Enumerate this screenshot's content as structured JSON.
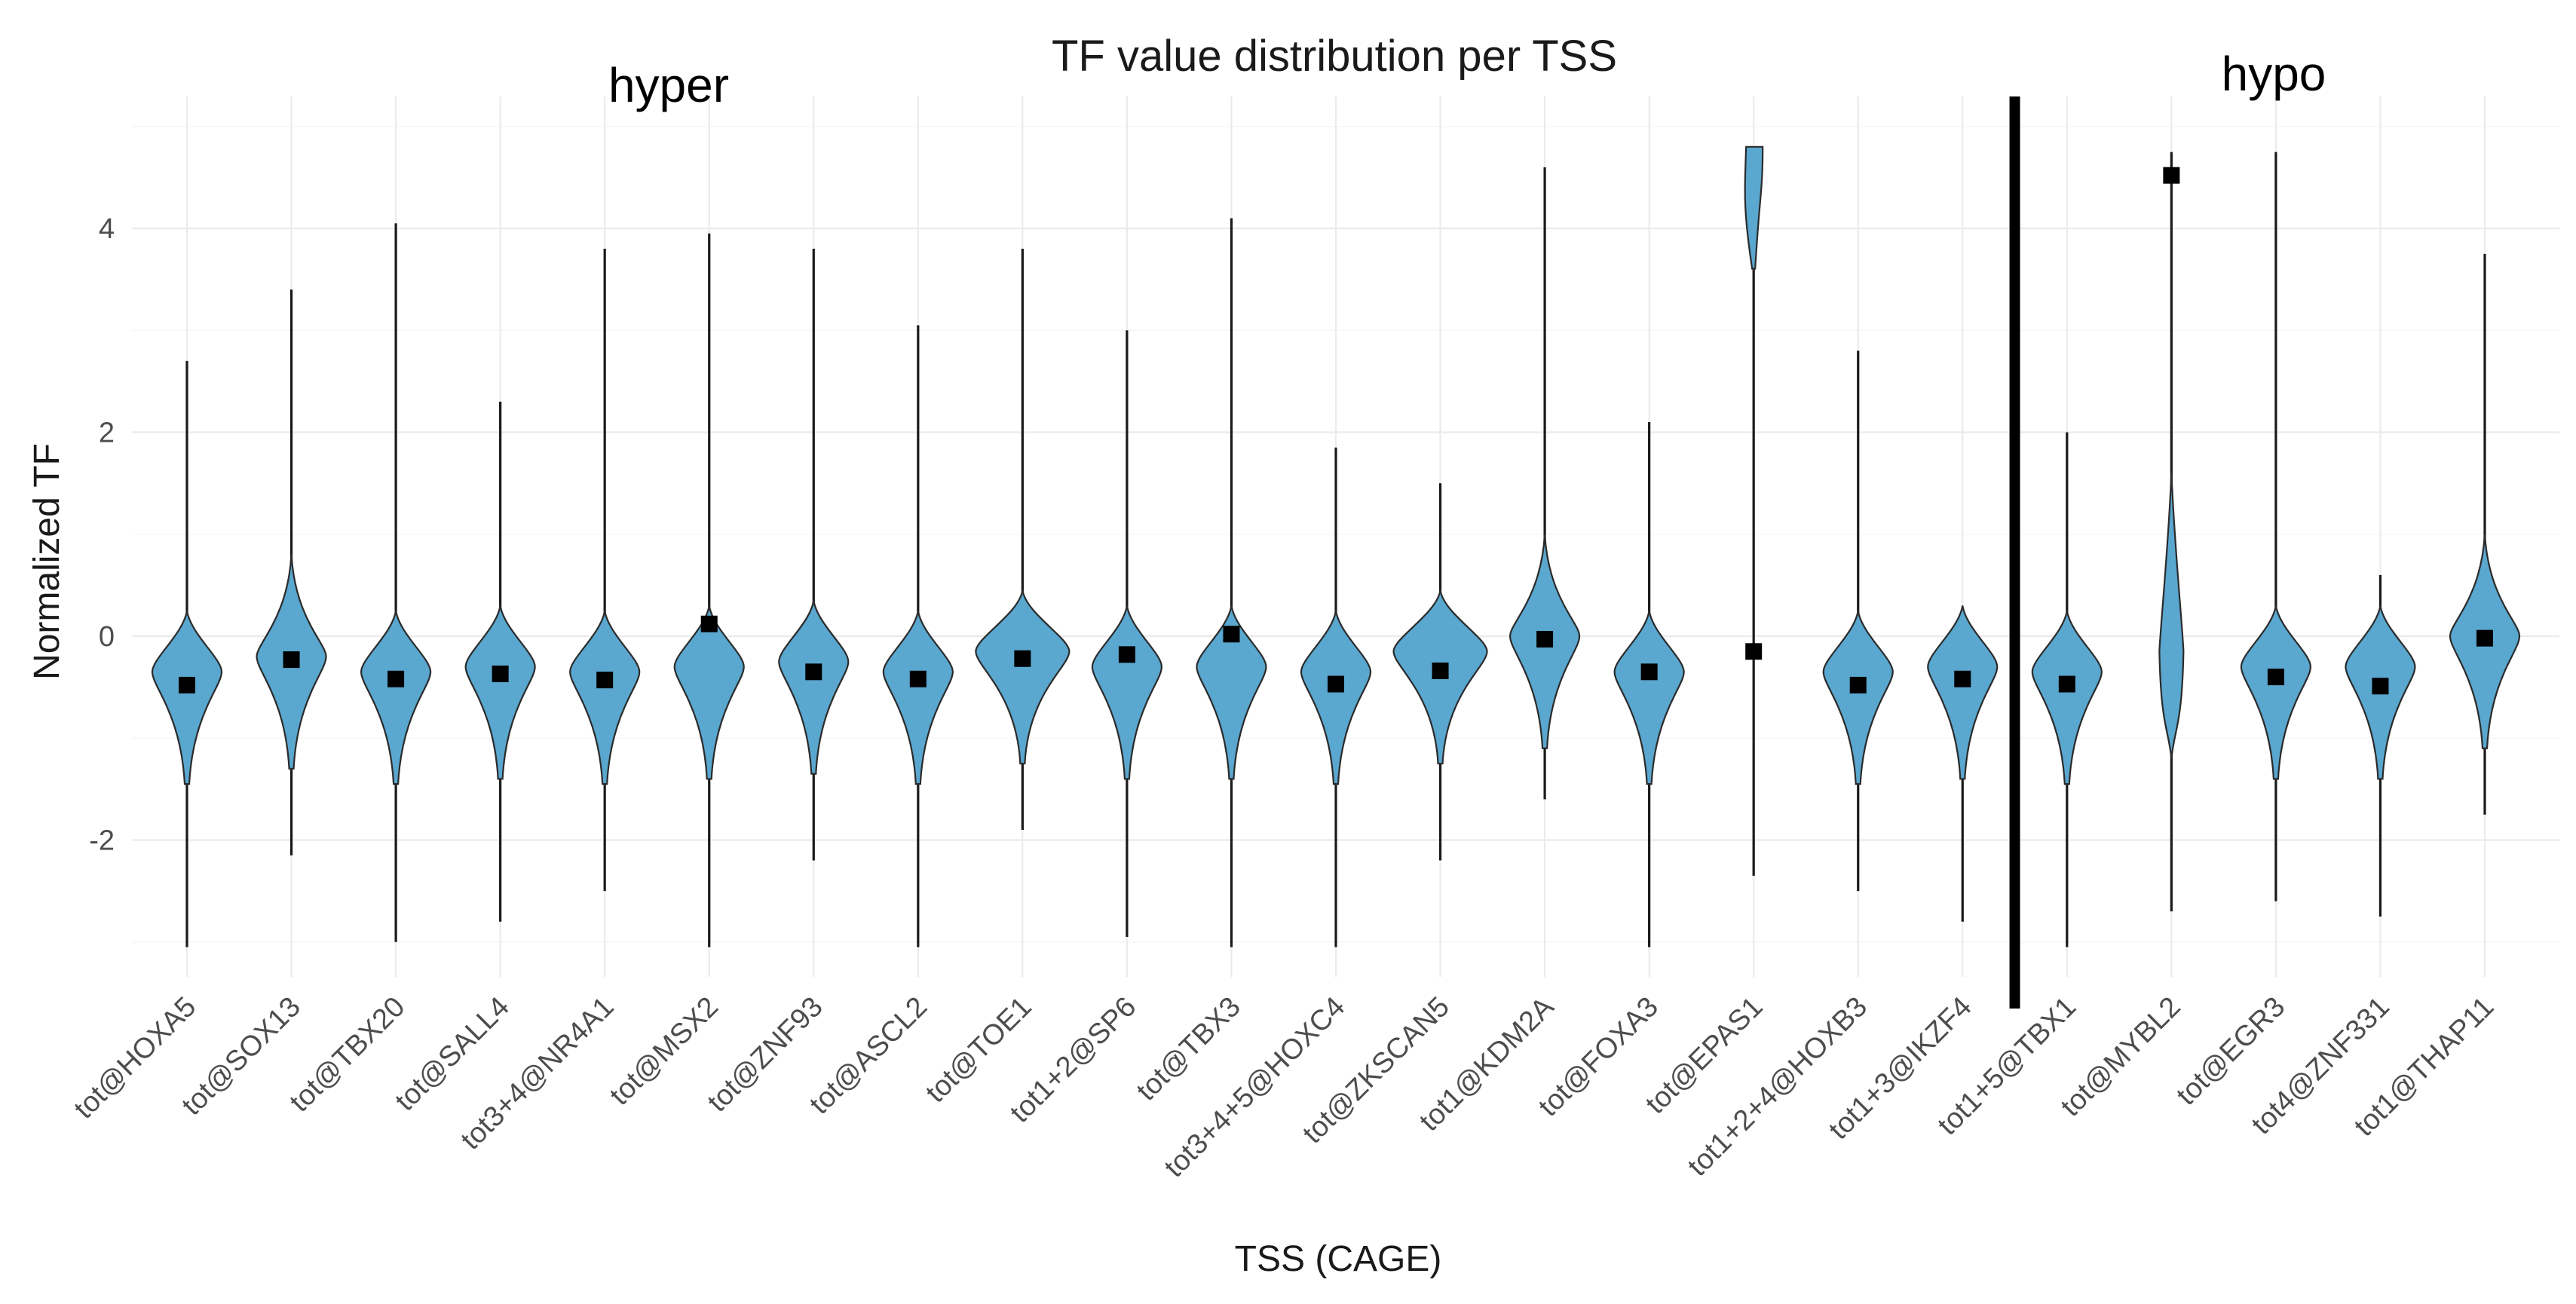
{
  "chart_data": {
    "type": "violin",
    "title": "TF value distribution per TSS",
    "xlabel": "TSS (CAGE)",
    "ylabel": "Normalized TF",
    "ylim": [
      -3.4,
      5.2
    ],
    "yticks": [
      -2,
      0,
      2,
      4
    ],
    "ytick_labels": [
      "-2",
      "0",
      "2",
      "4"
    ],
    "grid": true,
    "group_labels": [
      {
        "text": "hyper",
        "from_index": 0,
        "to_index": 17
      },
      {
        "text": "hypo",
        "from_index": 18,
        "to_index": 22
      }
    ],
    "divider_after_index": 17,
    "categories": [
      "tot@HOXA5",
      "tot@SOX13",
      "tot@TBX20",
      "tot@SALL4",
      "tot3+4@NR4A1",
      "tot@MSX2",
      "tot@ZNF93",
      "tot@ASCL2",
      "tot@TOE1",
      "tot1+2@SP6",
      "tot@TBX3",
      "tot3+4+5@HOXC4",
      "tot@ZKSCAN5",
      "tot1@KDM2A",
      "tot@FOXA3",
      "tot@EPAS1",
      "tot1+2+4@HOXB3",
      "tot1+3@IKZF4",
      "tot1+5@TBX1",
      "tot@MYBL2",
      "tot@EGR3",
      "tot4@ZNF331",
      "tot1@THAP11"
    ],
    "series": [
      {
        "name": "distribution",
        "min": [
          -3.05,
          -2.15,
          -3.0,
          -2.8,
          -2.5,
          -3.05,
          -2.2,
          -3.05,
          -1.9,
          -2.95,
          -3.05,
          -3.05,
          -2.2,
          -1.6,
          -3.05,
          -2.35,
          -2.5,
          -2.8,
          -3.05,
          -2.7,
          -2.6,
          -2.75,
          -1.75
        ],
        "max": [
          2.7,
          3.4,
          4.05,
          2.3,
          3.8,
          3.95,
          3.8,
          3.05,
          3.8,
          3.0,
          4.1,
          1.85,
          1.5,
          4.6,
          2.1,
          4.8,
          2.8,
          0.15,
          2.0,
          4.75,
          4.75,
          0.6,
          3.75
        ],
        "center": [
          -0.35,
          -0.2,
          -0.35,
          -0.3,
          -0.35,
          -0.3,
          -0.25,
          -0.35,
          -0.15,
          -0.3,
          -0.3,
          -0.35,
          -0.15,
          0.0,
          -0.35,
          4.8,
          -0.35,
          -0.3,
          -0.35,
          0.0,
          -0.3,
          -0.3,
          0.0
        ],
        "mean": [
          -0.48,
          -0.23,
          -0.42,
          -0.37,
          -0.43,
          0.12,
          -0.35,
          -0.42,
          -0.22,
          -0.18,
          0.02,
          -0.47,
          -0.34,
          -0.03,
          -0.35,
          -0.15,
          -0.48,
          -0.42,
          -0.47,
          4.52,
          -0.4,
          -0.49,
          -0.02
        ]
      }
    ]
  }
}
